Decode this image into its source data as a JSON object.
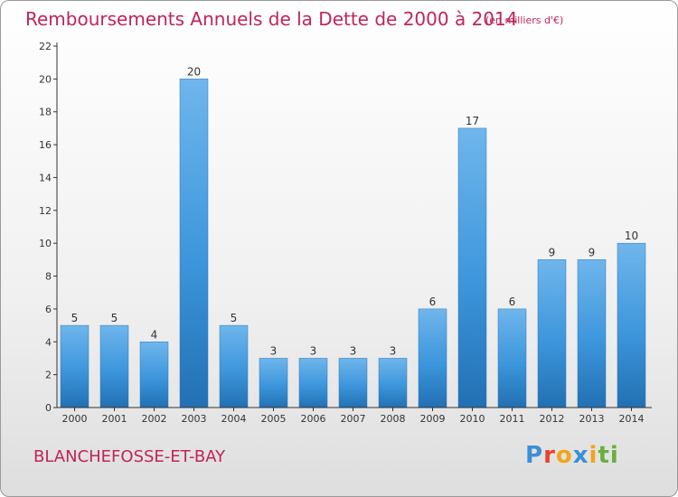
{
  "colors": {
    "title": "#c0245a",
    "bar_light": "#7cc0ef",
    "bar_mid": "#3f9be0",
    "bar_dark": "#1f6fb0",
    "axis": "#333333",
    "text": "#333333"
  },
  "header": {
    "title": "Remboursements Annuels de la Dette de 2000 à 2014",
    "subtitle": "(en milliers d'€)"
  },
  "footer": {
    "commune": "BLANCHEFOSSE-ET-BAY",
    "logo_letters": [
      "P",
      "r",
      "o",
      "x",
      "i",
      "t",
      "i"
    ],
    "logo_colors": [
      "#3a8fd6",
      "#e8432f",
      "#f2a51c",
      "#3a8fd6",
      "#f2a51c",
      "#6aaf3d",
      "#6aaf3d"
    ]
  },
  "chart_data": {
    "type": "bar",
    "title": "Remboursements Annuels de la Dette de 2000 à 2014",
    "unit": "(en milliers d'€)",
    "xlabel": "",
    "ylabel": "",
    "categories": [
      "2000",
      "2001",
      "2002",
      "2003",
      "2004",
      "2005",
      "2006",
      "2007",
      "2008",
      "2009",
      "2010",
      "2011",
      "2012",
      "2013",
      "2014"
    ],
    "values": [
      5,
      5,
      4,
      20,
      5,
      3,
      3,
      3,
      3,
      6,
      17,
      6,
      9,
      9,
      10
    ],
    "ylim": [
      0,
      22
    ],
    "yticks": [
      0,
      2,
      4,
      6,
      8,
      10,
      12,
      14,
      16,
      18,
      20,
      22
    ],
    "grid": false,
    "legend": "none"
  }
}
